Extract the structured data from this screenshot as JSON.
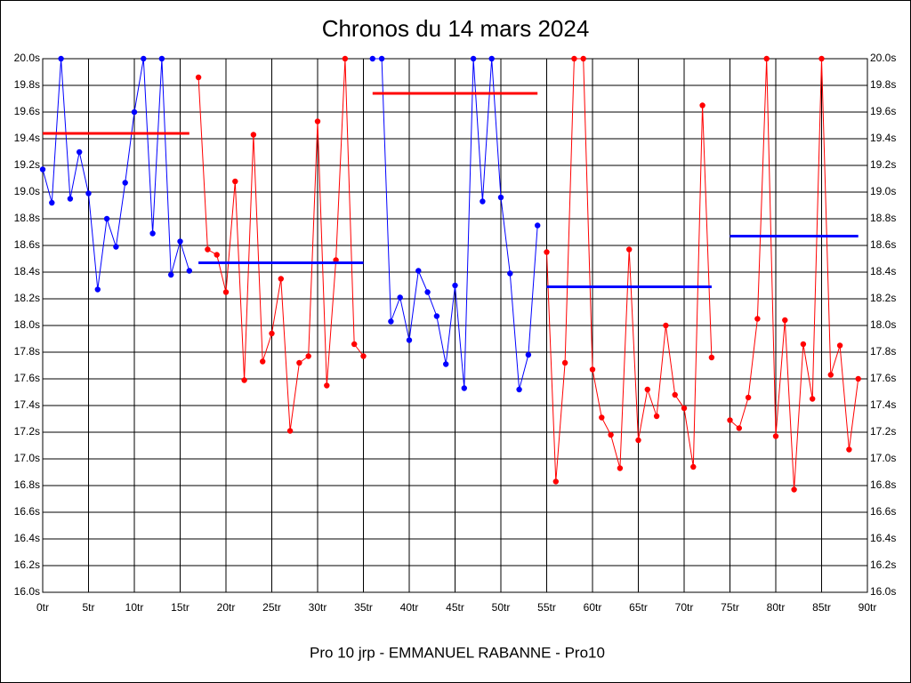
{
  "chart_data": {
    "type": "line",
    "title": "Chronos du 14 mars 2024",
    "xlabel": "Pro 10 jrp - EMMANUEL RABANNE - Pro10",
    "xlim": [
      0,
      90
    ],
    "ylim": [
      16,
      20
    ],
    "grid": true,
    "xticks": [
      {
        "value": 0,
        "label": "0tr"
      },
      {
        "value": 5,
        "label": "5tr"
      },
      {
        "value": 10,
        "label": "10tr"
      },
      {
        "value": 15,
        "label": "15tr"
      },
      {
        "value": 20,
        "label": "20tr"
      },
      {
        "value": 25,
        "label": "25tr"
      },
      {
        "value": 30,
        "label": "30tr"
      },
      {
        "value": 35,
        "label": "35tr"
      },
      {
        "value": 40,
        "label": "40tr"
      },
      {
        "value": 45,
        "label": "45tr"
      },
      {
        "value": 50,
        "label": "50tr"
      },
      {
        "value": 55,
        "label": "55tr"
      },
      {
        "value": 60,
        "label": "60tr"
      },
      {
        "value": 65,
        "label": "65tr"
      },
      {
        "value": 70,
        "label": "70tr"
      },
      {
        "value": 75,
        "label": "75tr"
      },
      {
        "value": 80,
        "label": "80tr"
      },
      {
        "value": 85,
        "label": "85tr"
      },
      {
        "value": 90,
        "label": "90tr"
      }
    ],
    "yticks": [
      {
        "value": 16,
        "label": "16.0s"
      },
      {
        "value": 16.2,
        "label": "16.2s"
      },
      {
        "value": 16.4,
        "label": "16.4s"
      },
      {
        "value": 16.6,
        "label": "16.6s"
      },
      {
        "value": 16.8,
        "label": "16.8s"
      },
      {
        "value": 17,
        "label": "17.0s"
      },
      {
        "value": 17.2,
        "label": "17.2s"
      },
      {
        "value": 17.4,
        "label": "17.4s"
      },
      {
        "value": 17.6,
        "label": "17.6s"
      },
      {
        "value": 17.8,
        "label": "17.8s"
      },
      {
        "value": 18,
        "label": "18.0s"
      },
      {
        "value": 18.2,
        "label": "18.2s"
      },
      {
        "value": 18.4,
        "label": "18.4s"
      },
      {
        "value": 18.6,
        "label": "18.6s"
      },
      {
        "value": 18.8,
        "label": "18.8s"
      },
      {
        "value": 19,
        "label": "19.0s"
      },
      {
        "value": 19.2,
        "label": "19.2s"
      },
      {
        "value": 19.4,
        "label": "19.4s"
      },
      {
        "value": 19.6,
        "label": "19.6s"
      },
      {
        "value": 19.8,
        "label": "19.8s"
      },
      {
        "value": 20,
        "label": "20.0s"
      }
    ],
    "series": [
      {
        "color": "#0000ff",
        "x": [
          0,
          1,
          2,
          3,
          4,
          5,
          6,
          7,
          8,
          9,
          10,
          11,
          12,
          13,
          14,
          15,
          16
        ],
        "values": [
          19.17,
          18.92,
          20,
          18.95,
          19.3,
          18.99,
          18.27,
          18.8,
          18.59,
          19.07,
          19.6,
          20,
          18.69,
          20,
          18.38,
          18.63,
          18.41
        ]
      },
      {
        "color": "#ff0000",
        "x": [
          17,
          18,
          19,
          20,
          21,
          22,
          23,
          24,
          25,
          26,
          27,
          28,
          29,
          30,
          31,
          32,
          33,
          34,
          35
        ],
        "values": [
          19.86,
          18.57,
          18.53,
          18.25,
          19.08,
          17.59,
          19.43,
          17.73,
          17.94,
          18.35,
          17.21,
          17.72,
          17.77,
          19.53,
          17.55,
          18.49,
          20,
          17.86,
          17.77
        ]
      },
      {
        "color": "#0000ff",
        "x": [
          36,
          37,
          38,
          39,
          40,
          41,
          42,
          43,
          44,
          45,
          46,
          47,
          48,
          49,
          50,
          51,
          52,
          53,
          54
        ],
        "values": [
          20,
          20,
          18.03,
          18.21,
          17.89,
          18.41,
          18.25,
          18.07,
          17.71,
          18.3,
          17.53,
          20,
          18.93,
          20,
          18.96,
          18.39,
          17.52,
          17.78,
          18.75
        ]
      },
      {
        "color": "#ff0000",
        "x": [
          55,
          56,
          57,
          58,
          59,
          60,
          61,
          62,
          63,
          64,
          65,
          66,
          67,
          68,
          69,
          70,
          71,
          72,
          73
        ],
        "values": [
          18.55,
          16.83,
          17.72,
          20,
          20,
          17.67,
          17.31,
          17.18,
          16.93,
          18.57,
          17.14,
          17.52,
          17.32,
          18,
          17.48,
          17.38,
          16.94,
          19.65,
          17.76
        ]
      },
      {
        "color": "#ff0000",
        "x": [
          75,
          76,
          77,
          78,
          79,
          80,
          81,
          82,
          83,
          84,
          85,
          86,
          87,
          88,
          89
        ],
        "values": [
          17.29,
          17.23,
          17.46,
          18.05,
          20,
          17.17,
          18.04,
          16.77,
          17.86,
          17.45,
          20,
          17.63,
          17.85,
          17.07,
          17.6
        ]
      }
    ],
    "mean_lines": [
      {
        "color": "#ff0000",
        "x": [
          0,
          16
        ],
        "value": 19.44
      },
      {
        "color": "#0000ff",
        "x": [
          17,
          35
        ],
        "value": 18.47
      },
      {
        "color": "#ff0000",
        "x": [
          36,
          54
        ],
        "value": 19.74
      },
      {
        "color": "#0000ff",
        "x": [
          55,
          73
        ],
        "value": 18.29
      },
      {
        "color": "#0000ff",
        "x": [
          75,
          89
        ],
        "value": 18.67
      }
    ]
  }
}
